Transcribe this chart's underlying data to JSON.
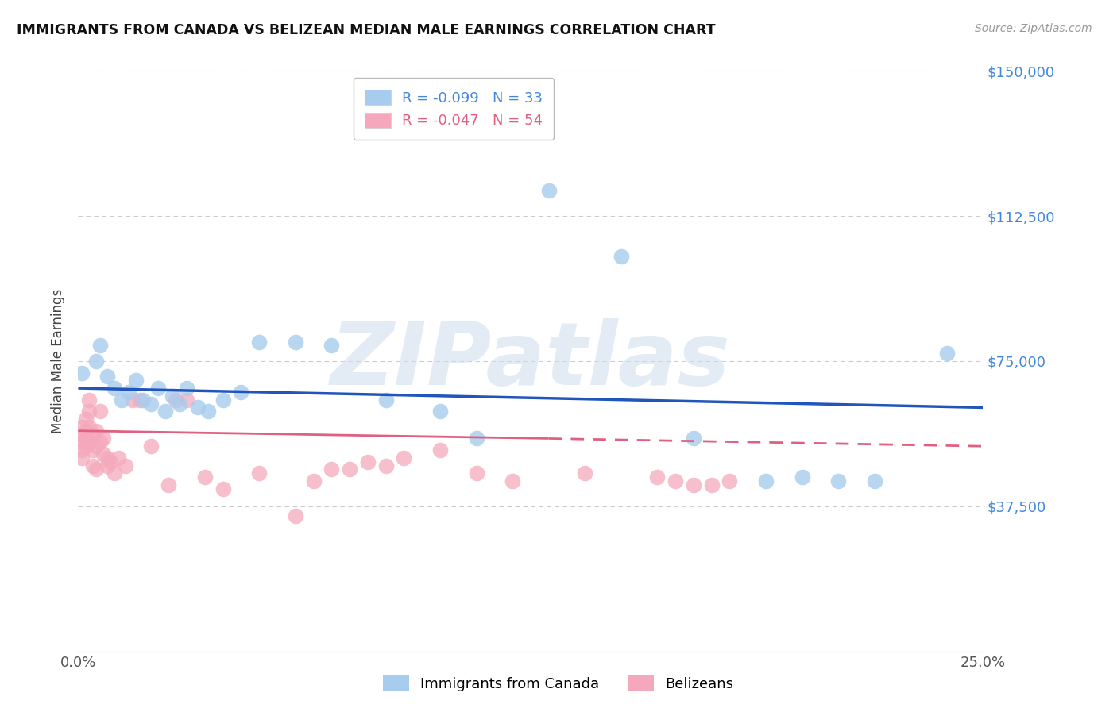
{
  "title": "IMMIGRANTS FROM CANADA VS BELIZEAN MEDIAN MALE EARNINGS CORRELATION CHART",
  "source": "Source: ZipAtlas.com",
  "ylabel": "Median Male Earnings",
  "xlim": [
    0.0,
    0.25
  ],
  "ylim": [
    0,
    150000
  ],
  "yticks": [
    0,
    37500,
    75000,
    112500,
    150000
  ],
  "ytick_labels_right": [
    "",
    "$37,500",
    "$75,000",
    "$112,500",
    "$150,000"
  ],
  "xticks": [
    0.0,
    0.05,
    0.1,
    0.15,
    0.2,
    0.25
  ],
  "xtick_labels": [
    "0.0%",
    "",
    "",
    "",
    "",
    "25.0%"
  ],
  "canada_color": "#A8CCEE",
  "belize_color": "#F5A8BC",
  "canada_line_color": "#2255BB",
  "belize_line_color": "#E06080",
  "watermark_text": "ZIPatlas",
  "canada_R": -0.099,
  "canada_N": 33,
  "belize_R": -0.047,
  "belize_N": 54,
  "canada_x": [
    0.001,
    0.005,
    0.006,
    0.008,
    0.01,
    0.012,
    0.014,
    0.016,
    0.018,
    0.02,
    0.022,
    0.024,
    0.026,
    0.028,
    0.03,
    0.033,
    0.036,
    0.04,
    0.045,
    0.05,
    0.06,
    0.07,
    0.085,
    0.1,
    0.11,
    0.13,
    0.15,
    0.17,
    0.19,
    0.2,
    0.21,
    0.22,
    0.24
  ],
  "canada_y": [
    72000,
    75000,
    79000,
    71000,
    68000,
    65000,
    67000,
    70000,
    65000,
    64000,
    68000,
    62000,
    66000,
    64000,
    68000,
    63000,
    62000,
    65000,
    67000,
    80000,
    80000,
    79000,
    65000,
    62000,
    55000,
    119000,
    102000,
    55000,
    44000,
    45000,
    44000,
    44000,
    77000
  ],
  "belize_x": [
    0.001,
    0.001,
    0.001,
    0.001,
    0.001,
    0.002,
    0.002,
    0.002,
    0.002,
    0.003,
    0.003,
    0.003,
    0.003,
    0.004,
    0.004,
    0.004,
    0.005,
    0.005,
    0.005,
    0.006,
    0.006,
    0.007,
    0.007,
    0.008,
    0.008,
    0.009,
    0.01,
    0.011,
    0.013,
    0.015,
    0.017,
    0.02,
    0.025,
    0.027,
    0.03,
    0.035,
    0.04,
    0.05,
    0.06,
    0.065,
    0.07,
    0.075,
    0.08,
    0.085,
    0.09,
    0.1,
    0.11,
    0.12,
    0.14,
    0.16,
    0.165,
    0.17,
    0.175,
    0.18
  ],
  "belize_y": [
    58000,
    56000,
    54000,
    52000,
    50000,
    60000,
    57000,
    55000,
    53000,
    65000,
    62000,
    58000,
    54000,
    56000,
    52000,
    48000,
    57000,
    53000,
    47000,
    62000,
    54000,
    55000,
    51000,
    50000,
    48000,
    49000,
    46000,
    50000,
    48000,
    65000,
    65000,
    53000,
    43000,
    65000,
    65000,
    45000,
    42000,
    46000,
    35000,
    44000,
    47000,
    47000,
    49000,
    48000,
    50000,
    52000,
    46000,
    44000,
    46000,
    45000,
    44000,
    43000,
    43000,
    44000
  ]
}
